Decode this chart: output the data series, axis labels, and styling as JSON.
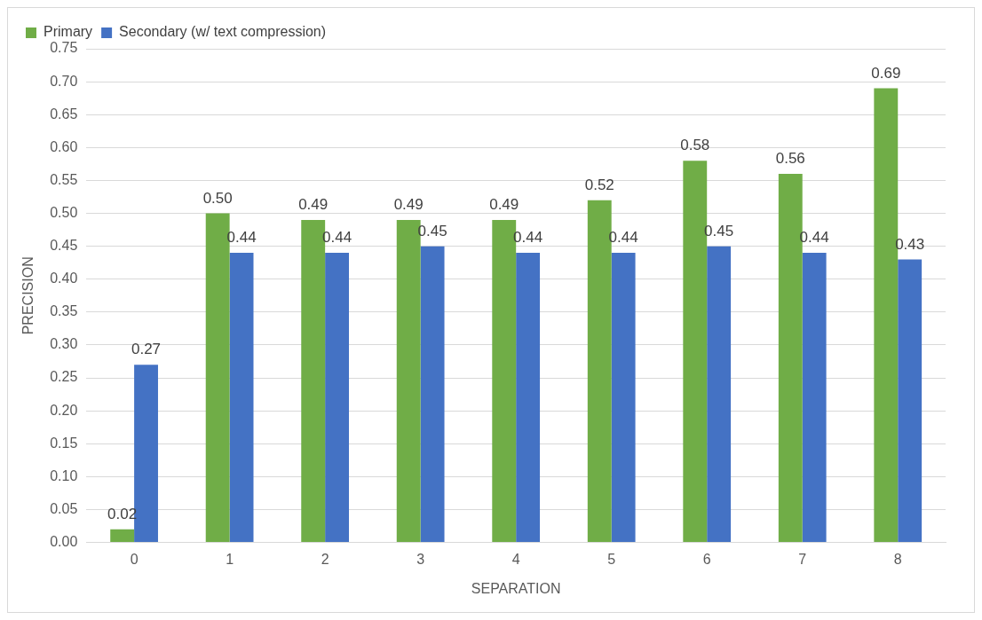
{
  "chart_data": {
    "type": "bar",
    "xlabel": "SEPARATION",
    "ylabel": "PRECISION",
    "categories": [
      "0",
      "1",
      "2",
      "3",
      "4",
      "5",
      "6",
      "7",
      "8"
    ],
    "series": [
      {
        "name": "Primary",
        "color": "#70ad47",
        "values": [
          0.02,
          0.5,
          0.49,
          0.49,
          0.49,
          0.52,
          0.58,
          0.56,
          0.69
        ],
        "value_labels": [
          "0.02",
          "0.50",
          "0.49",
          "0.49",
          "0.49",
          "0.52",
          "0.58",
          "0.56",
          "0.69"
        ]
      },
      {
        "name": "Secondary (w/ text compression)",
        "color": "#4472c4",
        "values": [
          0.27,
          0.44,
          0.44,
          0.45,
          0.44,
          0.44,
          0.45,
          0.44,
          0.43
        ],
        "value_labels": [
          "0.27",
          "0.44",
          "0.44",
          "0.45",
          "0.44",
          "0.44",
          "0.45",
          "0.44",
          "0.43"
        ]
      }
    ],
    "ylim": [
      0,
      0.75
    ],
    "yticks": [
      {
        "value": 0,
        "label": "0.00"
      },
      {
        "value": 0.05,
        "label": "0.05"
      },
      {
        "value": 0.1,
        "label": "0.10"
      },
      {
        "value": 0.15,
        "label": "0.15"
      },
      {
        "value": 0.2,
        "label": "0.20"
      },
      {
        "value": 0.25,
        "label": "0.25"
      },
      {
        "value": 0.3,
        "label": "0.30"
      },
      {
        "value": 0.35,
        "label": "0.35"
      },
      {
        "value": 0.4,
        "label": "0.40"
      },
      {
        "value": 0.45,
        "label": "0.45"
      },
      {
        "value": 0.5,
        "label": "0.50"
      },
      {
        "value": 0.55,
        "label": "0.55"
      },
      {
        "value": 0.6,
        "label": "0.60"
      },
      {
        "value": 0.65,
        "label": "0.65"
      },
      {
        "value": 0.7,
        "label": "0.70"
      },
      {
        "value": 0.75,
        "label": "0.75"
      }
    ],
    "grid": "y",
    "legend": "top left"
  }
}
